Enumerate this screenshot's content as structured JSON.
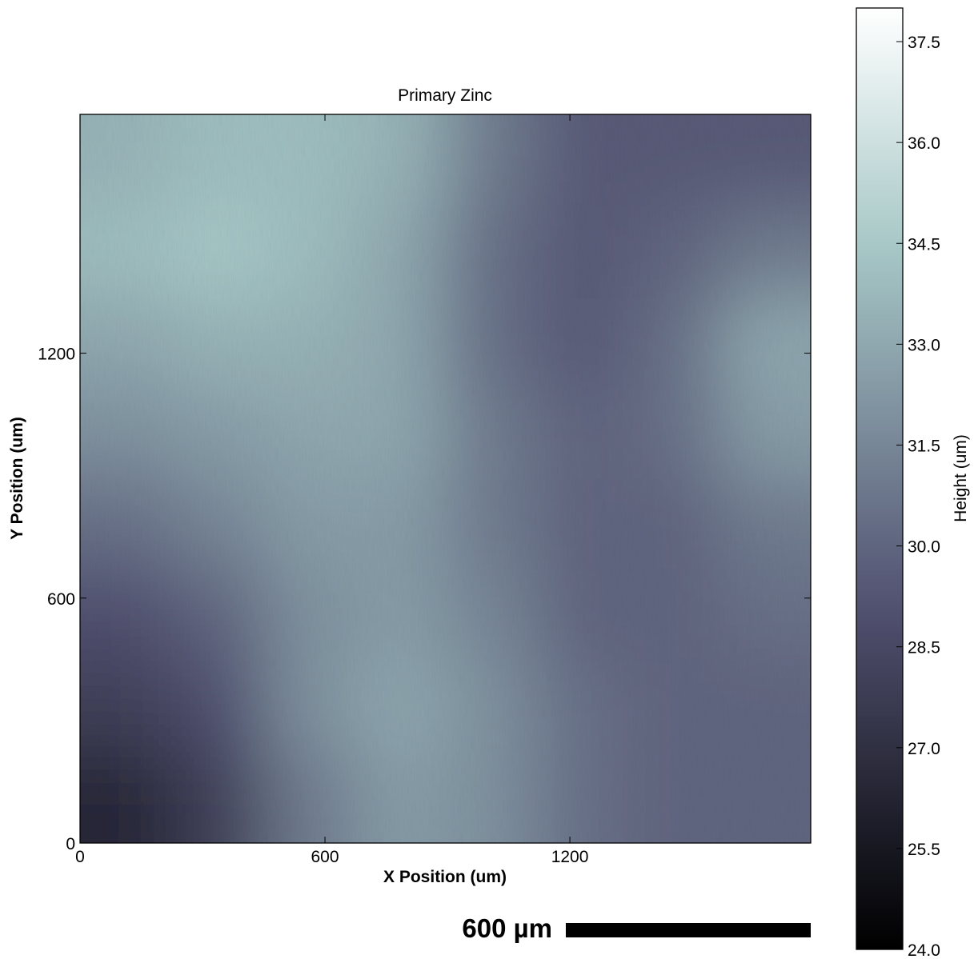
{
  "chart_data": {
    "type": "heatmap",
    "title": "Primary Zinc",
    "x_label": "X Position (um)",
    "y_label": "Y Position (um)",
    "xlim": [
      0,
      1790
    ],
    "ylim": [
      0,
      1785
    ],
    "xticks": [
      0,
      600,
      1200
    ],
    "yticks": [
      0,
      600,
      1200
    ],
    "colormap": "bone",
    "z": [
      [
        26.5,
        28,
        31,
        32.5,
        32,
        30.5,
        30,
        30
      ],
      [
        28,
        29,
        32,
        33,
        32,
        30.5,
        30,
        30
      ],
      [
        29,
        30,
        32,
        32.5,
        31.5,
        30,
        30,
        30.5
      ],
      [
        30.5,
        31.5,
        32.5,
        32.5,
        31,
        30,
        30,
        31
      ],
      [
        32,
        32.5,
        33,
        33,
        31,
        30,
        30.5,
        32.5
      ],
      [
        33,
        33.5,
        33.5,
        33,
        30.5,
        29.5,
        30.5,
        33
      ],
      [
        34,
        34.5,
        34,
        33,
        30.5,
        29.5,
        30,
        31
      ],
      [
        33.5,
        34,
        34,
        33.5,
        31,
        29.5,
        29.5,
        29.5
      ]
    ],
    "colorbar": {
      "label": "Height (um)",
      "clim": [
        24,
        38
      ],
      "ticks": [
        {
          "value": 24,
          "label": "24.0"
        },
        25.5,
        {
          "value": 27,
          "label": "27.0"
        },
        28.5,
        {
          "value": 30,
          "label": "30.0"
        },
        31.5,
        {
          "value": 33,
          "label": "33.0"
        },
        34.5,
        {
          "value": 36,
          "label": "36.0"
        },
        37.5
      ]
    },
    "scale_bar": {
      "label": "600 µm",
      "length": 600
    }
  }
}
